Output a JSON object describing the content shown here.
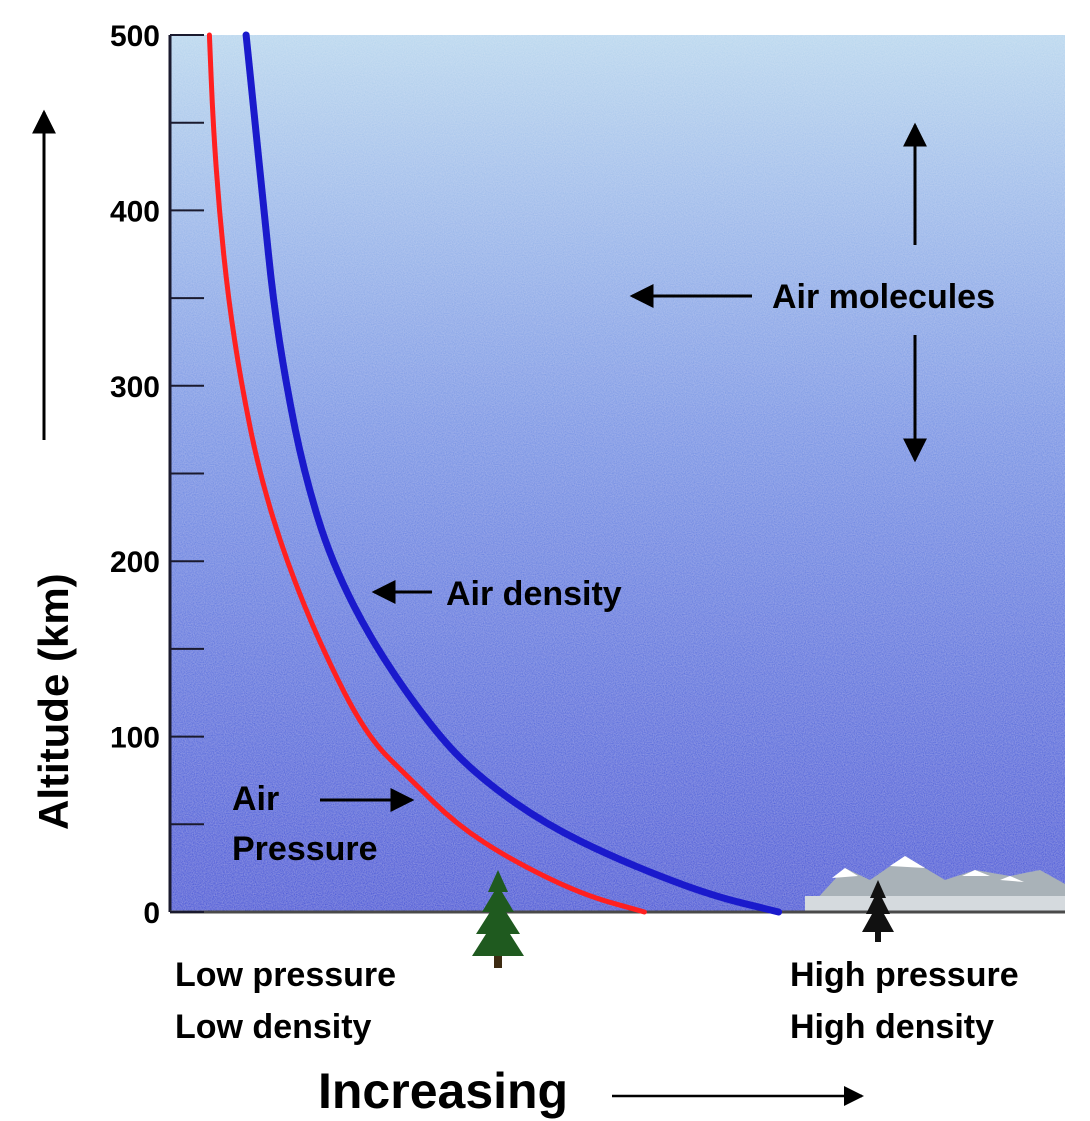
{
  "chart_data": {
    "type": "line",
    "title": "",
    "ylabel": "Altitude (km)",
    "xlabel": "Increasing",
    "ylim": [
      0,
      500
    ],
    "yticks": [
      0,
      100,
      200,
      300,
      400,
      500
    ],
    "x_scale": "relative (0 = low, 1 = high)",
    "grid": false,
    "series": [
      {
        "name": "Air Pressure",
        "color": "#ff2020",
        "points": [
          [
            0.53,
            0
          ],
          [
            0.46,
            10
          ],
          [
            0.38,
            30
          ],
          [
            0.32,
            50
          ],
          [
            0.27,
            75
          ],
          [
            0.22,
            100
          ],
          [
            0.17,
            150
          ],
          [
            0.13,
            200
          ],
          [
            0.1,
            250
          ],
          [
            0.08,
            300
          ],
          [
            0.065,
            350
          ],
          [
            0.055,
            400
          ],
          [
            0.048,
            450
          ],
          [
            0.044,
            500
          ]
        ]
      },
      {
        "name": "Air density",
        "color": "#1a1acc",
        "points": [
          [
            0.68,
            0
          ],
          [
            0.6,
            10
          ],
          [
            0.5,
            30
          ],
          [
            0.42,
            50
          ],
          [
            0.35,
            75
          ],
          [
            0.3,
            100
          ],
          [
            0.23,
            150
          ],
          [
            0.18,
            200
          ],
          [
            0.15,
            250
          ],
          [
            0.13,
            300
          ],
          [
            0.115,
            350
          ],
          [
            0.105,
            400
          ],
          [
            0.095,
            450
          ],
          [
            0.085,
            500
          ]
        ]
      }
    ],
    "annotations": {
      "air_molecules": "Air molecules",
      "air_density": "Air density",
      "air_pressure_line1": "Air",
      "air_pressure_line2": "Pressure"
    },
    "bottom_left": {
      "line1": "Low pressure",
      "line2": "Low density"
    },
    "bottom_right": {
      "line1": "High pressure",
      "line2": "High density"
    }
  },
  "colors": {
    "sky_top": "#b7d6ee",
    "sky_bottom": "#2c44d4",
    "tree": "#1f5a1f",
    "mountain": "#aeb6bc"
  },
  "icons": [
    "tree-icon",
    "mountains-icon",
    "up-arrow-icon",
    "down-arrow-icon",
    "left-arrow-icon",
    "right-arrow-icon"
  ]
}
